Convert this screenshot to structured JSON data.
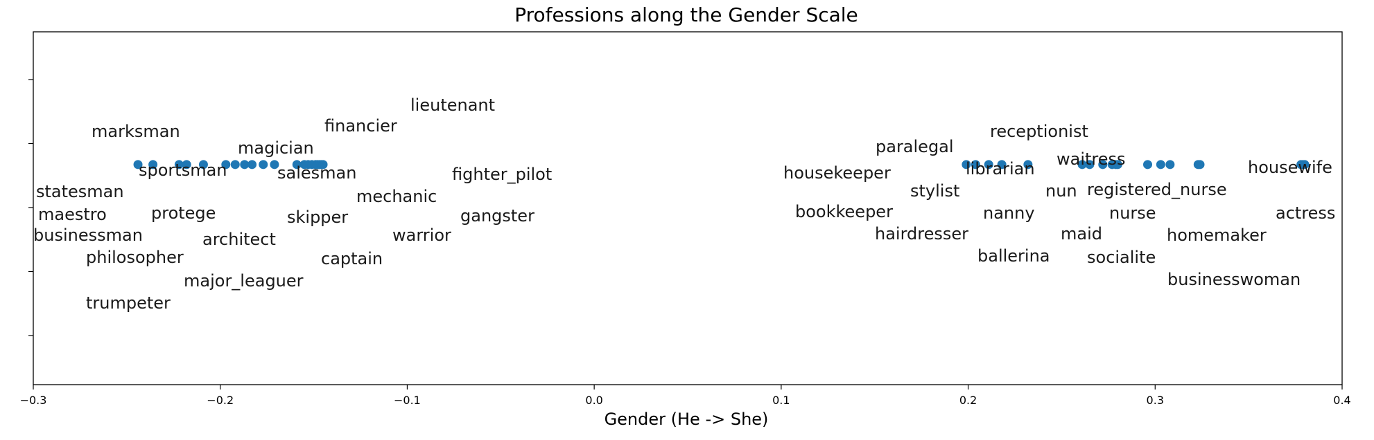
{
  "chart_data": {
    "type": "scatter",
    "title": "Professions along the Gender Scale",
    "xlabel": "Gender (He -> She)",
    "ylabel": "",
    "xlim": [
      -0.3,
      0.4
    ],
    "x_ticks": [
      -0.3,
      -0.2,
      -0.1,
      0.0,
      0.1,
      0.2,
      0.3,
      0.4
    ],
    "x_tick_labels": [
      "−0.3",
      "−0.2",
      "−0.1",
      "0.0",
      "0.1",
      "0.2",
      "0.3",
      "0.4"
    ],
    "y_tick_labels_visible": false,
    "grid": false,
    "point_color": "#1f77b4",
    "points": [
      {
        "label": "statesman",
        "x": -0.244,
        "y": 0.0
      },
      {
        "label": "maestro",
        "x": -0.236,
        "y": 0.0
      },
      {
        "label": "businessman",
        "x": -0.222,
        "y": 0.0
      },
      {
        "label": "protege",
        "x": -0.218,
        "y": 0.0
      },
      {
        "label": "sportsman",
        "x": -0.209,
        "y": 0.0
      },
      {
        "label": "philosopher",
        "x": -0.197,
        "y": 0.0
      },
      {
        "label": "marksman",
        "x": -0.192,
        "y": 0.0
      },
      {
        "label": "trumpeter",
        "x": -0.187,
        "y": 0.0
      },
      {
        "label": "architect",
        "x": -0.183,
        "y": 0.0
      },
      {
        "label": "major_leaguer",
        "x": -0.177,
        "y": 0.0
      },
      {
        "label": "magician",
        "x": -0.171,
        "y": 0.0
      },
      {
        "label": "salesman",
        "x": -0.159,
        "y": 0.0
      },
      {
        "label": "skipper",
        "x": -0.155,
        "y": 0.0
      },
      {
        "label": "financier",
        "x": -0.153,
        "y": 0.0
      },
      {
        "label": "captain",
        "x": -0.151,
        "y": 0.0
      },
      {
        "label": "mechanic",
        "x": -0.149,
        "y": 0.0
      },
      {
        "label": "warrior",
        "x": -0.148,
        "y": 0.0
      },
      {
        "label": "lieutenant",
        "x": -0.147,
        "y": 0.0
      },
      {
        "label": "fighter_pilot",
        "x": -0.146,
        "y": 0.0
      },
      {
        "label": "gangster",
        "x": -0.145,
        "y": 0.0
      },
      {
        "label": "housekeeper",
        "x": 0.199,
        "y": 0.0
      },
      {
        "label": "bookkeeper",
        "x": 0.204,
        "y": 0.0
      },
      {
        "label": "paralegal",
        "x": 0.211,
        "y": 0.0
      },
      {
        "label": "hairdresser",
        "x": 0.218,
        "y": 0.0
      },
      {
        "label": "stylist",
        "x": 0.232,
        "y": 0.0
      },
      {
        "label": "librarian",
        "x": 0.261,
        "y": 0.0
      },
      {
        "label": "nanny",
        "x": 0.265,
        "y": 0.0
      },
      {
        "label": "ballerina",
        "x": 0.272,
        "y": 0.0
      },
      {
        "label": "receptionist",
        "x": 0.277,
        "y": 0.0
      },
      {
        "label": "nun",
        "x": 0.279,
        "y": 0.0
      },
      {
        "label": "waitress",
        "x": 0.28,
        "y": 0.0
      },
      {
        "label": "maid",
        "x": 0.296,
        "y": 0.0
      },
      {
        "label": "socialite",
        "x": 0.303,
        "y": 0.0
      },
      {
        "label": "registered_nurse",
        "x": 0.308,
        "y": 0.0
      },
      {
        "label": "nurse",
        "x": 0.323,
        "y": 0.0
      },
      {
        "label": "homemaker",
        "x": 0.324,
        "y": 0.0
      },
      {
        "label": "businesswoman",
        "x": 0.378,
        "y": 0.0
      },
      {
        "label": "housewife",
        "x": 0.379,
        "y": 0.0
      },
      {
        "label": "actress",
        "x": 0.38,
        "y": 0.0
      }
    ]
  }
}
